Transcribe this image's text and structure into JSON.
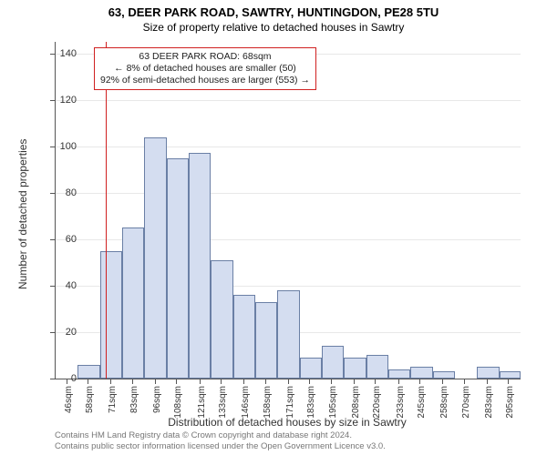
{
  "titles": {
    "main": "63, DEER PARK ROAD, SAWTRY, HUNTINGDON, PE28 5TU",
    "sub": "Size of property relative to detached houses in Sawtry",
    "y_axis": "Number of detached properties",
    "x_axis": "Distribution of detached houses by size in Sawtry"
  },
  "annotation": {
    "line1": "63 DEER PARK ROAD: 68sqm",
    "line2": "← 8% of detached houses are smaller (50)",
    "line3": "92% of semi-detached houses are larger (553) →"
  },
  "chart": {
    "type": "histogram",
    "x_min": 40,
    "x_max": 302,
    "y_min": 0,
    "y_max": 145,
    "y_ticks": [
      0,
      20,
      40,
      60,
      80,
      100,
      120,
      140
    ],
    "x_ticks": [
      46,
      58,
      71,
      83,
      96,
      108,
      121,
      133,
      146,
      158,
      171,
      183,
      195,
      208,
      220,
      233,
      245,
      258,
      270,
      283,
      295
    ],
    "x_tick_suffix": "sqm",
    "reference_x": 68,
    "reference_color": "#d02020",
    "bar_color": "#d4ddf0",
    "bar_border_color": "#6a7fa5",
    "grid_color": "#e8e8e8",
    "bars": [
      {
        "x0": 40,
        "x1": 52.5,
        "y": 0
      },
      {
        "x0": 52.5,
        "x1": 65,
        "y": 6
      },
      {
        "x0": 65,
        "x1": 77.5,
        "y": 55
      },
      {
        "x0": 77.5,
        "x1": 90,
        "y": 65
      },
      {
        "x0": 90,
        "x1": 102.5,
        "y": 104
      },
      {
        "x0": 102.5,
        "x1": 115,
        "y": 95
      },
      {
        "x0": 115,
        "x1": 127.5,
        "y": 97
      },
      {
        "x0": 127.5,
        "x1": 140,
        "y": 51
      },
      {
        "x0": 140,
        "x1": 152.5,
        "y": 36
      },
      {
        "x0": 152.5,
        "x1": 165,
        "y": 33
      },
      {
        "x0": 165,
        "x1": 177.5,
        "y": 38
      },
      {
        "x0": 177.5,
        "x1": 190,
        "y": 9
      },
      {
        "x0": 190,
        "x1": 202.5,
        "y": 14
      },
      {
        "x0": 202.5,
        "x1": 215,
        "y": 9
      },
      {
        "x0": 215,
        "x1": 227.5,
        "y": 10
      },
      {
        "x0": 227.5,
        "x1": 240,
        "y": 4
      },
      {
        "x0": 240,
        "x1": 252.5,
        "y": 5
      },
      {
        "x0": 252.5,
        "x1": 265,
        "y": 3
      },
      {
        "x0": 265,
        "x1": 277.5,
        "y": 0
      },
      {
        "x0": 277.5,
        "x1": 290,
        "y": 5
      },
      {
        "x0": 290,
        "x1": 302,
        "y": 3
      }
    ]
  },
  "footer": {
    "line1": "Contains HM Land Registry data © Crown copyright and database right 2024.",
    "line2": "Contains public sector information licensed under the Open Government Licence v3.0."
  }
}
